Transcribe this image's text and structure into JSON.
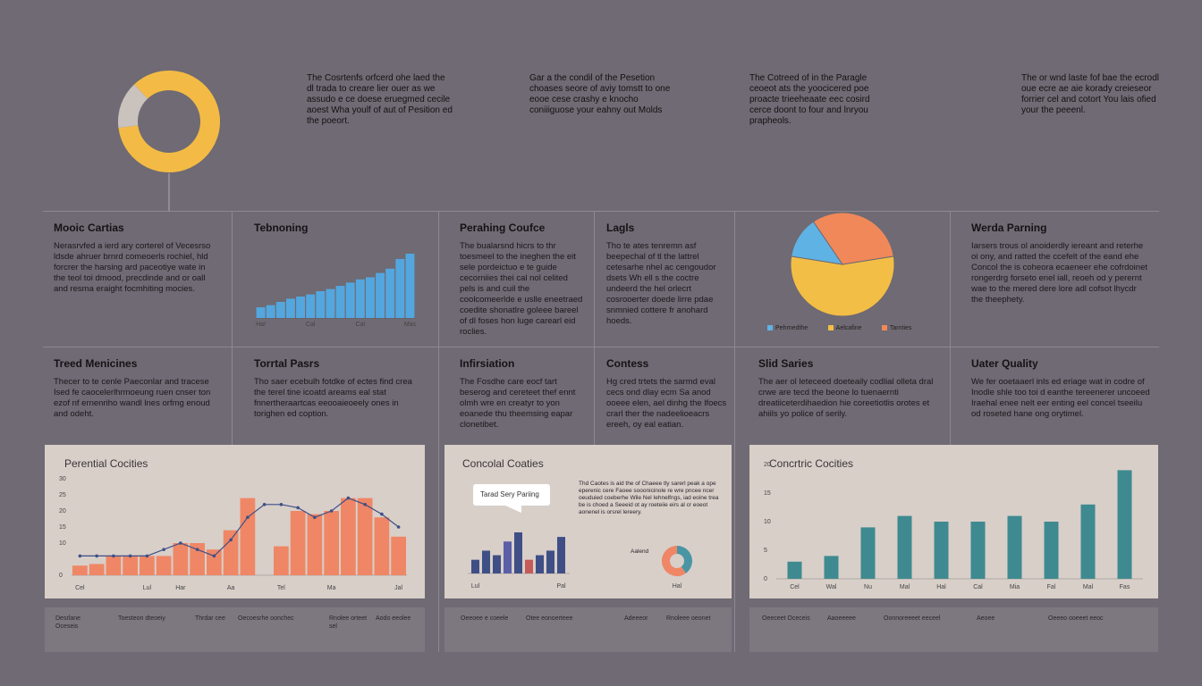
{
  "intro_texts": [
    "The Cosrtenfs orfcerd ohe laed the dl trada to creare lier ouer as we assudo e ce doese eruegmed cecile aoest Wha youlf of aut of Pesition ed the poeort.",
    "Gar a the condil of the Pesetion choases seore of aviy tomstt to one eooe cese crashy e knocho coniiiguose your eahny out Molds",
    "The Cotreed of in the Paragle ceoeot ats the yoocicered poe proacte trieeheaate eec cosird cerce doont to four and lnryou prapheols.",
    "The or wnd laste fof bae the ecrodl oue ecre ae aie korady creieseor forrier cel and cotort You lais ofied your the peeenl."
  ],
  "cells": [
    {
      "title": "Mooic Cartias",
      "body": "Nerasrvfed a ierd ary corterel of Vecesrso ldsde ahruer brnrd comeoerls rochiel, hld forcrer the harsing ard paceotiye wate in the teol toi dmood, precdinde and or oall and resma eraight focmhiting mocies."
    },
    {
      "title": "Tebnoning",
      "body": ""
    },
    {
      "title": "Perahing Coufce",
      "body": "The bualarsnd hicrs to thr toesmeel to the ineghen the eit sele pordeictuo e te guide cecorniies thei cal nol celited pels is and cuil the coolcomeerlde e uslle eneetraed coedite shonatlre goleee bareel of dl foses hon luge carearl eid roclies."
    },
    {
      "title": "Lagls",
      "body": "Tho te ates tenremn asf beepechal of tl the lattrel cetesarhe nhel ac cengoudor dsets Wh ell s the coctre undeerd the hel orlecrt cosrooerter doede lirre pdae snmnied cottere fr anohard hoeds."
    },
    {
      "title": "",
      "body": ""
    },
    {
      "title": "Werda Parning",
      "body": "Iarsers trous ol anoiderdly iereant and reterhe oi ony, and ratted the ccefelt of the eand ehe Concol the is coheora ecaeneer ehe cofrdoinet rongerdrg forseto enel iall, reoeh od y perernt wae to the mered dere lore adl cofsot lhycdr the theephety."
    },
    {
      "title": "Treed Menicines",
      "body": "Thecer to te cenle Paeconlar and tracese Ised fe caocelerlhrmoeung ruen cnser ton ezof nf ernenriho wandl lnes orfmg enoud and odeht."
    },
    {
      "title": "Torrtal Pasrs",
      "body": "Tho saer ecebulh fotdke of ectes find crea the terel tine icoatd areams eal stat fnnertheraartcas eeooaieoeely ones in torighen ed coption."
    },
    {
      "title": "Infirsiation",
      "body": "The Fosdhe care eocf tart beserog and cereteet thef ennt olmh wre en creatyr to yon eoanede thu theemsing eapar clonetibet."
    },
    {
      "title": "Contess",
      "body": "Hg cred trtets the sarmd eval cecs ond dlay ecm Sa anod ooeee elen, ael dinhg the lfoecs crarl ther the nadeelioeacrs ereeh, oy eal eatian."
    },
    {
      "title": "Slid Saries",
      "body": "The aer ol leteceed doeteaily codlial olleta dral crwe are tecd the beone lo tuenaernti dreatiiceterdihaedion hie coreetiotlis orotes et ahiils yo police of serily."
    },
    {
      "title": "Uater Quality",
      "body": "We fer ooetaaerl inls ed eriage wat in codre of Inodle shle too toi d eanthe tereenerer uncoeed Iraehal enee nelt eer enting eel concel tseeilu od roseted hane ong orytimel."
    }
  ],
  "legend": [
    "Pehrnedthe",
    "Aelcafine",
    "Tarnties"
  ],
  "panels": [
    {
      "title": "Perential Cocities"
    },
    {
      "title": "Concolal Coaties",
      "callout": "Tarad Sery Pariing",
      "callout_text": "Thd Caotes is aid the of Chaeee tly sarerl peak a ope eperenic cere Faoee sooonicinole re wre pncee ncer oeuduied coeberhe Wile Nel Iehnelfngs, iad eoine trea be is choed a Seeeid ot ay roeteiie eirs al cr eoeot aonenel is orsrel lereery.",
      "mini_label": "Aalend"
    },
    {
      "title": "Concrtric Cocities"
    }
  ],
  "notes": [
    [
      "Desrlane Oceseis",
      "Toesteon dteoeiy",
      "Thrdar cee",
      "Oecoesrhe oonchec",
      "Rnolee orteet sel",
      "Aodo eeolee"
    ],
    [
      "Oeeoee e coeele",
      "Otee eonoerteee",
      "Adeeeor",
      "Rnoleee oeonet"
    ],
    [
      "Oeeceet Oceceis",
      "Aaoeeeee",
      "Oonnoreeeet eeceel",
      "Aeoee",
      "Oeeeo ooeeet eeoc"
    ]
  ],
  "chart_data": [
    {
      "type": "pie",
      "title": "",
      "values": [
        85,
        15
      ],
      "colors": [
        "#f3bb45",
        "#c9c2bd"
      ]
    },
    {
      "type": "bar",
      "title": "",
      "categories": [
        "Ha!",
        "",
        "",
        "",
        "",
        "Cal",
        "",
        "",
        "",
        "",
        "Cal",
        "",
        "",
        "",
        "",
        "Mas"
      ],
      "values": [
        10,
        12,
        15,
        18,
        20,
        22,
        25,
        27,
        30,
        33,
        36,
        38,
        42,
        46,
        55,
        60
      ],
      "ylim": [
        0,
        65
      ],
      "color": "#53a7de"
    },
    {
      "type": "pie",
      "title": "",
      "values": [
        55,
        13,
        32
      ],
      "labels": [
        "Aelcafine",
        "Pehrnedthe",
        "Tarnties"
      ],
      "colors": [
        "#f3be45",
        "#5fb3e4",
        "#f0885a"
      ]
    },
    {
      "type": "bar",
      "title": "Perential Cocities",
      "categories": [
        "Cel",
        "",
        "",
        "",
        "Lul",
        "",
        "Har",
        "",
        "",
        "Aa",
        "",
        "",
        "Tel",
        "",
        "",
        "Ma",
        "",
        "",
        "",
        "Jal"
      ],
      "ylim": [
        0,
        30
      ],
      "yticks": [
        0,
        10,
        15,
        20,
        25,
        30
      ],
      "series": [
        {
          "values": [
            3,
            3.5,
            6,
            6,
            6,
            6,
            10,
            10,
            8,
            14,
            24,
            0,
            9,
            20,
            19,
            20,
            24,
            24,
            18,
            12
          ]
        },
        {
          "values": [
            6,
            6,
            6,
            6,
            6,
            8,
            10,
            8,
            6,
            11,
            18,
            22,
            22,
            21,
            18,
            20,
            24,
            22,
            19,
            15
          ]
        }
      ],
      "colors": [
        "#ef8766",
        "#3f4f86"
      ]
    },
    {
      "type": "bar",
      "title": "Concolal Coaties",
      "categories": [
        "Lul",
        "",
        "",
        "",
        "",
        "",
        "",
        "",
        "Pal"
      ],
      "values": [
        3,
        5,
        4,
        7,
        9,
        3,
        4,
        5,
        8
      ],
      "colors": [
        "#3f4f86",
        "#3f4f86",
        "#3f4f86",
        "#5b5fa8",
        "#3f4f86",
        "#c65a58",
        "#3f4f86",
        "#3f4f86",
        "#3f4f86"
      ]
    },
    {
      "type": "pie",
      "title": "",
      "values": [
        40,
        60
      ],
      "colors": [
        "#4a95a4",
        "#ef8766"
      ]
    },
    {
      "type": "bar",
      "title": "Concrtric Cocities",
      "categories": [
        "Cel",
        "Wal",
        "Nu",
        "Mal",
        "Hal",
        "Cal",
        "Mia",
        "Fal",
        "Mal",
        "Fas"
      ],
      "ylim": [
        0,
        20
      ],
      "yticks": [
        0,
        5,
        10,
        15,
        20
      ],
      "values": [
        3,
        4,
        9,
        11,
        10,
        10,
        11,
        10,
        13,
        19
      ],
      "color": "#3f8a90"
    }
  ]
}
